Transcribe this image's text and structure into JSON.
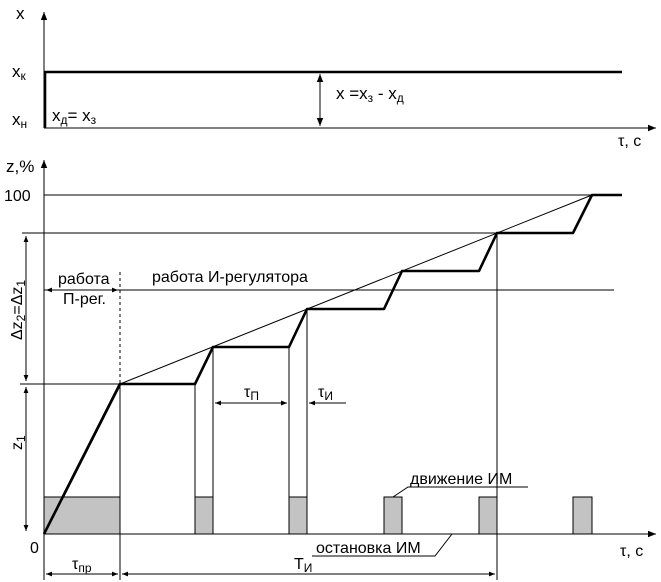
{
  "top_plot": {
    "y_axis_label": "x",
    "x_axis_label": "τ, с",
    "level_high_label": "x",
    "level_high_sub": "к",
    "level_low_label": "x",
    "level_low_sub": "н",
    "setpoint_eq": {
      "a": "x",
      "a_sub": "д",
      "eq": "= x",
      "b_sub": "з"
    },
    "error_eq": {
      "a": "x =x",
      "a_sub": "з",
      "mid": " - x",
      "b_sub": "д"
    }
  },
  "bottom_plot": {
    "y_axis_label": "z,%",
    "x_axis_label": "τ, с",
    "origin_label": "0",
    "y_max_label": "100",
    "z1_label": "z",
    "z1_sub": "1",
    "dz_label": {
      "a": "Δz",
      "a_sub": "2",
      "eq": "=Δz",
      "b_sub": "1"
    },
    "p_region_label_1": "работа",
    "p_region_label_2": "П-рег.",
    "i_region_label": "работа И-регулятора",
    "tau_p": {
      "sym": "τ",
      "sub": "П"
    },
    "tau_i": {
      "sym": "τ",
      "sub": "И"
    },
    "tau_pr": {
      "sym": "τ",
      "sub": "пр"
    },
    "T_i": {
      "sym": "T",
      "sub": "И"
    },
    "motion_label": "движение ИМ",
    "stop_label": "остановка ИМ",
    "pulses_count": 6
  }
}
